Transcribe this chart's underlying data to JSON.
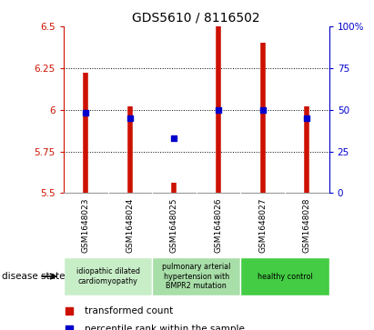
{
  "title": "GDS5610 / 8116502",
  "samples": [
    "GSM1648023",
    "GSM1648024",
    "GSM1648025",
    "GSM1648026",
    "GSM1648027",
    "GSM1648028"
  ],
  "red_values": [
    6.22,
    6.02,
    5.56,
    6.5,
    6.4,
    6.02
  ],
  "blue_values": [
    48,
    45,
    33,
    50,
    50,
    45
  ],
  "ylim_left": [
    5.5,
    6.5
  ],
  "ylim_right": [
    0,
    100
  ],
  "yticks_left": [
    5.5,
    5.75,
    6.0,
    6.25,
    6.5
  ],
  "yticks_right": [
    0,
    25,
    50,
    75,
    100
  ],
  "ytick_labels_left": [
    "5.5",
    "5.75",
    "6",
    "6.25",
    "6.5"
  ],
  "ytick_labels_right": [
    "0",
    "25",
    "50",
    "75",
    "100%"
  ],
  "red_color": "#CC1100",
  "blue_color": "#0000CC",
  "disease_groups": [
    {
      "label": "idiopathic dilated\ncardiomyopathy",
      "samples": [
        0,
        1
      ],
      "color": "#c8eec8"
    },
    {
      "label": "pulmonary arterial\nhypertension with\nBMPR2 mutation",
      "samples": [
        2,
        3
      ],
      "color": "#a8dea8"
    },
    {
      "label": "healthy control",
      "samples": [
        4,
        5
      ],
      "color": "#44cc44"
    }
  ],
  "disease_state_label": "disease state",
  "legend_red": "transformed count",
  "legend_blue": "percentile rank within the sample",
  "bg_color": "#ffffff",
  "sample_bg_color": "#cccccc",
  "grid_dotted_at": [
    5.75,
    6.0,
    6.25
  ],
  "linewidth_red": 4
}
